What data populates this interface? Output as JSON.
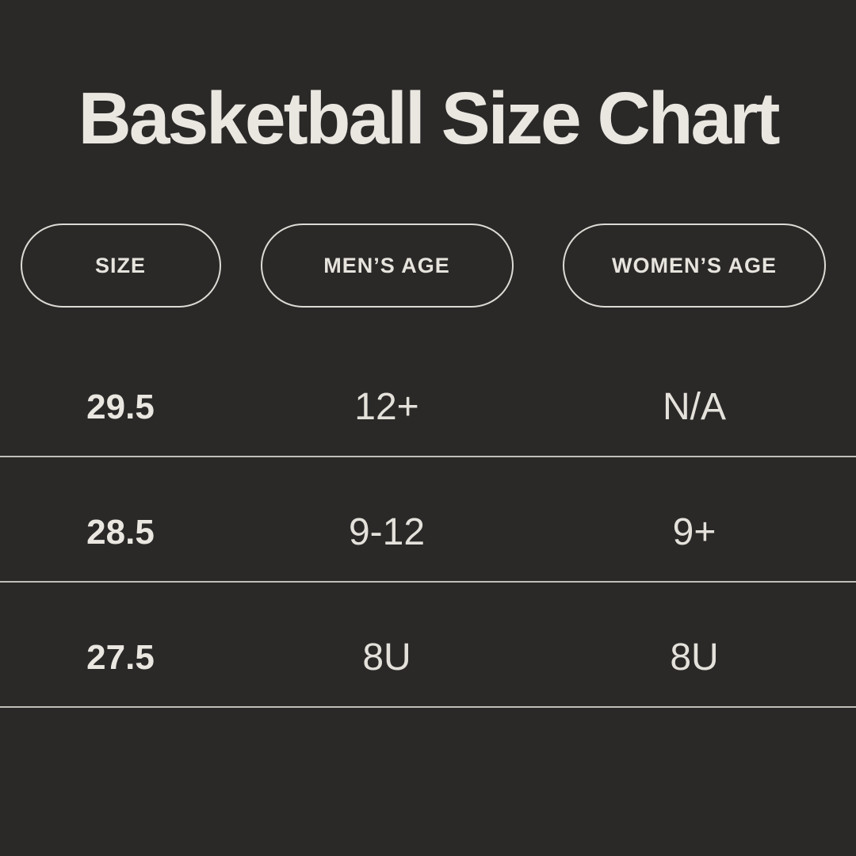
{
  "title": "Basketball Size Chart",
  "colors": {
    "background": "#2a2928",
    "text_cream": "#eae7e1",
    "pill_border": "#dedbd5",
    "divider": "#c2bfba"
  },
  "table": {
    "columns": [
      {
        "label": "SIZE"
      },
      {
        "label": "MEN’S AGE"
      },
      {
        "label": "WOMEN’S AGE"
      }
    ],
    "rows": [
      {
        "size": "29.5",
        "mens_age": "12+",
        "womens_age": "N/A"
      },
      {
        "size": "28.5",
        "mens_age": "9-12",
        "womens_age": "9+"
      },
      {
        "size": "27.5",
        "mens_age": "8U",
        "womens_age": "8U"
      }
    ]
  },
  "chart_data": {
    "type": "table",
    "title": "Basketball Size Chart",
    "columns": [
      "SIZE",
      "MEN’S AGE",
      "WOMEN’S AGE"
    ],
    "rows": [
      [
        "29.5",
        "12+",
        "N/A"
      ],
      [
        "28.5",
        "9-12",
        "9+"
      ],
      [
        "27.5",
        "8U",
        "8U"
      ]
    ],
    "layout": {
      "header_style": "outlined pill capsules",
      "grid": "horizontal dividers only",
      "theme": "dark background, cream text"
    }
  }
}
